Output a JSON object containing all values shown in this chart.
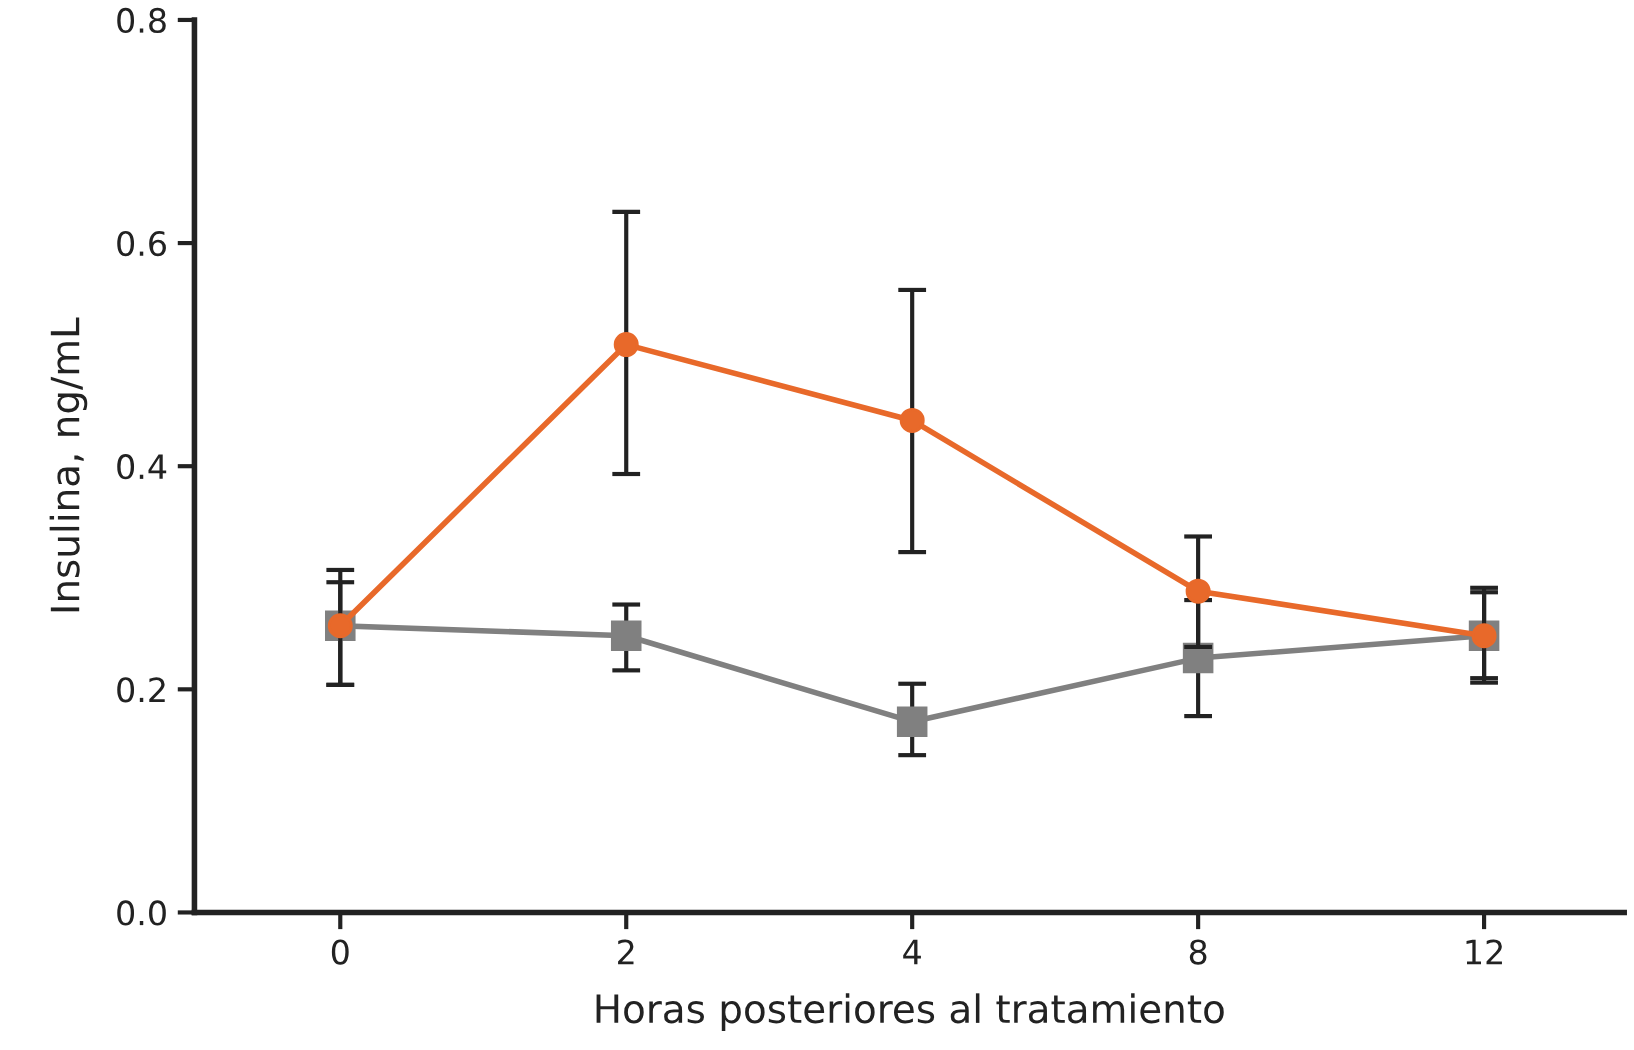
{
  "chart_data": {
    "type": "line",
    "xlabel": "Horas posteriores al tratamiento",
    "ylabel": "Insulina, ng/mL",
    "categories": [
      "0",
      "2",
      "4",
      "8",
      "12"
    ],
    "ylim": [
      0,
      0.8
    ],
    "yticks": [
      {
        "value": 0,
        "label": "0.0"
      },
      0.2,
      0.4,
      0.6,
      0.8
    ],
    "grid": false,
    "legend": false,
    "series": [
      {
        "color": "#808080",
        "marker": "square",
        "values": [
          0.257,
          0.248,
          0.171,
          0.228,
          0.248
        ],
        "errors": [
          [
            0.204,
            0.296
          ],
          [
            0.217,
            0.276
          ],
          [
            0.141,
            0.205
          ],
          [
            0.176,
            0.28
          ],
          [
            0.21,
            0.287
          ]
        ]
      },
      {
        "color": "#e8692a",
        "marker": "circle",
        "values": [
          0.257,
          0.509,
          0.441,
          0.288,
          0.248
        ],
        "errors": [
          [
            0.204,
            0.307
          ],
          [
            0.393,
            0.628
          ],
          [
            0.323,
            0.558
          ],
          [
            0.238,
            0.337
          ],
          [
            0.206,
            0.291
          ]
        ]
      }
    ]
  }
}
